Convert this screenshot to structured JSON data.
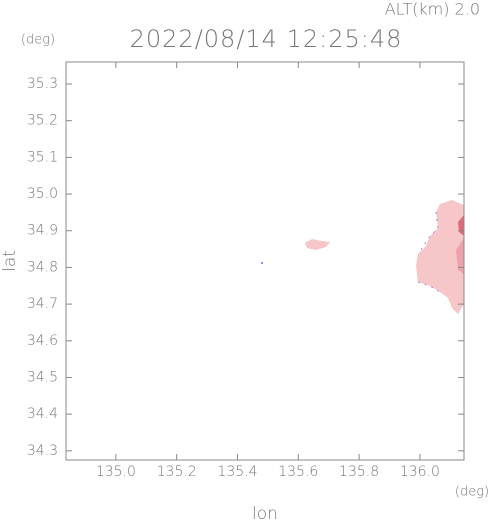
{
  "chart_data": {
    "type": "map",
    "title": "2022/08/14 12:25:48",
    "altitude_label": "ALT(km) 2.0",
    "y_unit": "(deg)",
    "x_unit": "(deg)",
    "x_label": "lon",
    "y_label": "lat",
    "xlim": [
      134.836,
      136.145
    ],
    "ylim": [
      34.275,
      35.36
    ],
    "xticks": [
      {
        "value": 135.0,
        "label": "135.0"
      },
      135.2,
      135.4,
      135.6,
      135.8,
      {
        "value": 136.0,
        "label": "136.0"
      }
    ],
    "yticks": [
      34.3,
      34.4,
      34.5,
      34.6,
      34.7,
      34.8,
      34.9,
      {
        "value": 35.0,
        "label": "35.0"
      },
      35.1,
      35.2,
      35.3
    ]
  }
}
